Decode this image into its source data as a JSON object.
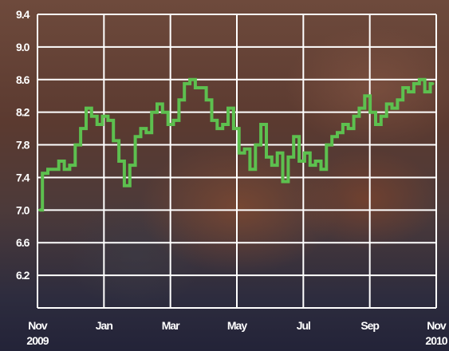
{
  "chart_data": {
    "type": "line",
    "title": "",
    "xlabel": "",
    "ylabel": "",
    "ylim": [
      5.8,
      9.4
    ],
    "xlim": [
      "2009-11-01",
      "2010-11-01"
    ],
    "y_ticks": [
      "9.4",
      "9.0",
      "8.6",
      "8.2",
      "7.8",
      "7.4",
      "7.0",
      "6.6",
      "6.2"
    ],
    "x_ticks": [
      {
        "month": "Nov",
        "year": "2009"
      },
      {
        "month": "Jan",
        "year": ""
      },
      {
        "month": "Mar",
        "year": ""
      },
      {
        "month": "May",
        "year": ""
      },
      {
        "month": "Jul",
        "year": ""
      },
      {
        "month": "Sep",
        "year": ""
      },
      {
        "month": "Nov",
        "year": "2010"
      }
    ],
    "grid": true,
    "line_color": "#5dc04f",
    "series": [
      {
        "name": "",
        "x": [
          "2009-11-03",
          "2009-11-08",
          "2009-11-13",
          "2009-11-18",
          "2009-11-23",
          "2009-11-28",
          "2009-12-03",
          "2009-12-08",
          "2009-12-13",
          "2009-12-18",
          "2009-12-23",
          "2009-12-28",
          "2010-01-02",
          "2010-01-07",
          "2010-01-12",
          "2010-01-17",
          "2010-01-22",
          "2010-01-27",
          "2010-02-01",
          "2010-02-06",
          "2010-02-11",
          "2010-02-16",
          "2010-02-21",
          "2010-02-26",
          "2010-03-03",
          "2010-03-08",
          "2010-03-13",
          "2010-03-18",
          "2010-03-23",
          "2010-03-28",
          "2010-04-02",
          "2010-04-07",
          "2010-04-12",
          "2010-04-17",
          "2010-04-22",
          "2010-04-27",
          "2010-05-02",
          "2010-05-07",
          "2010-05-12",
          "2010-05-17",
          "2010-05-22",
          "2010-05-27",
          "2010-06-01",
          "2010-06-06",
          "2010-06-11",
          "2010-06-16",
          "2010-06-21",
          "2010-06-26",
          "2010-07-01",
          "2010-07-06",
          "2010-07-11",
          "2010-07-16",
          "2010-07-21",
          "2010-07-26",
          "2010-07-31",
          "2010-08-05",
          "2010-08-10",
          "2010-08-15",
          "2010-08-20",
          "2010-08-25",
          "2010-08-30",
          "2010-09-04",
          "2010-09-09",
          "2010-09-14",
          "2010-09-19",
          "2010-09-24",
          "2010-09-29",
          "2010-10-04",
          "2010-10-09",
          "2010-10-14",
          "2010-10-19",
          "2010-10-24",
          "2010-10-29"
        ],
        "y": [
          7.0,
          7.45,
          7.5,
          7.5,
          7.6,
          7.5,
          7.55,
          7.8,
          8.0,
          8.25,
          8.15,
          8.05,
          8.15,
          8.1,
          7.85,
          7.6,
          7.3,
          7.55,
          7.9,
          8.0,
          7.95,
          8.2,
          8.3,
          8.2,
          8.05,
          8.1,
          8.35,
          8.55,
          8.6,
          8.5,
          8.5,
          8.35,
          8.1,
          8.0,
          8.05,
          8.25,
          8.0,
          7.7,
          7.75,
          7.5,
          7.8,
          8.05,
          7.65,
          7.55,
          7.7,
          7.35,
          7.65,
          7.9,
          7.6,
          7.7,
          7.55,
          7.6,
          7.5,
          7.8,
          7.9,
          7.95,
          8.05,
          8.0,
          8.15,
          8.25,
          8.4,
          8.2,
          8.05,
          8.15,
          8.3,
          8.25,
          8.35,
          8.5,
          8.45,
          8.55,
          8.6,
          8.45,
          8.55
        ]
      }
    ]
  }
}
